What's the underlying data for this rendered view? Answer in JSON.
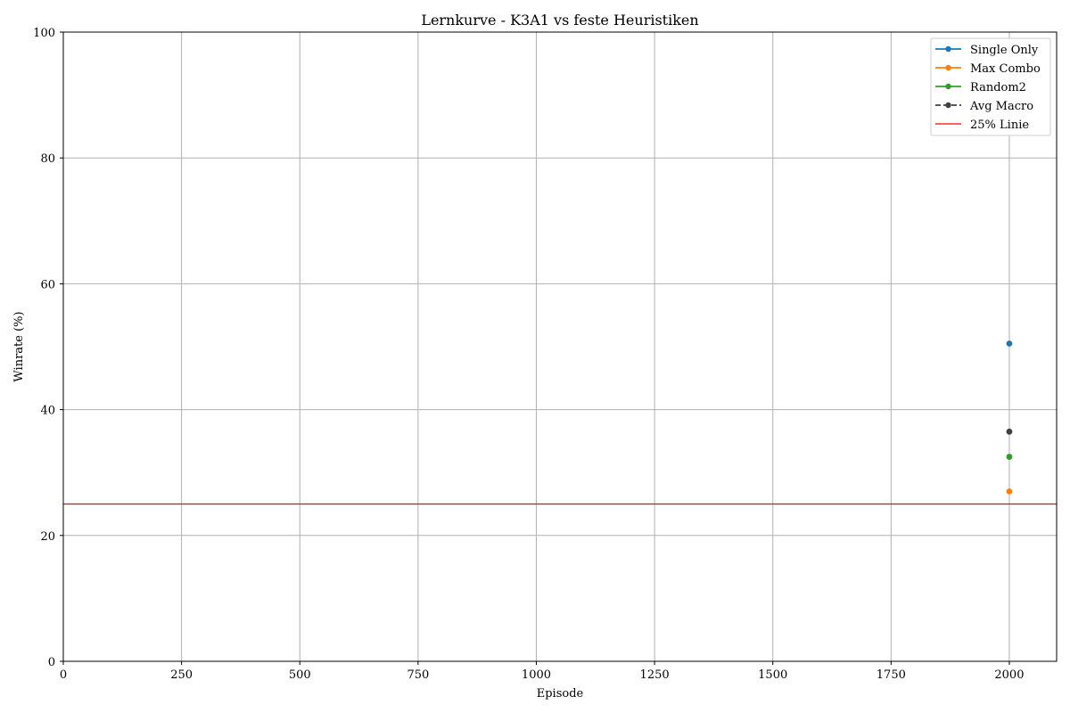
{
  "chart_data": {
    "type": "line",
    "title": "Lernkurve - K3A1 vs feste Heuristiken",
    "xlabel": "Episode",
    "ylabel": "Winrate (%)",
    "xlim": [
      0,
      2100
    ],
    "ylim": [
      0,
      100
    ],
    "x_ticks": [
      0,
      250,
      500,
      750,
      1000,
      1250,
      1500,
      1750,
      2000
    ],
    "y_ticks": [
      0,
      20,
      40,
      60,
      80,
      100
    ],
    "grid": true,
    "legend_position": "top-right",
    "series": [
      {
        "name": "Single Only",
        "color": "#1f77b4",
        "linestyle": "solid",
        "marker": "circle",
        "x": [
          2000
        ],
        "y": [
          50.5
        ]
      },
      {
        "name": "Max Combo",
        "color": "#ff7f0e",
        "linestyle": "solid",
        "marker": "circle",
        "x": [
          2000
        ],
        "y": [
          27
        ]
      },
      {
        "name": "Random2",
        "color": "#2ca02c",
        "linestyle": "solid",
        "marker": "circle",
        "x": [
          2000
        ],
        "y": [
          32.5
        ]
      },
      {
        "name": "Avg Macro",
        "color": "#404040",
        "linestyle": "dashed",
        "marker": "circle",
        "x": [
          2000
        ],
        "y": [
          36.5
        ]
      }
    ],
    "reference_lines": [
      {
        "name": "25% Linie",
        "color": "#ff0000",
        "y": 25
      }
    ]
  }
}
